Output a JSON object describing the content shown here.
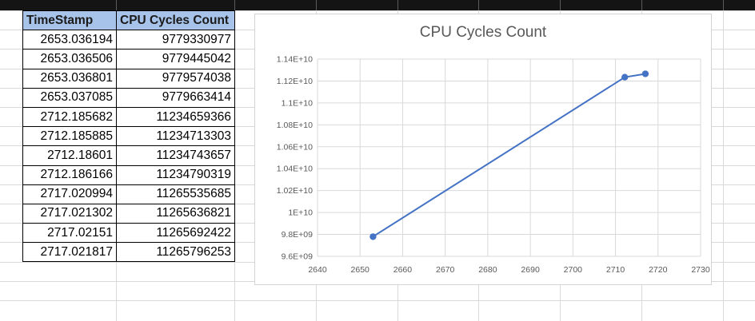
{
  "sheet": {
    "headers": [
      "TimeStamp",
      "CPU Cycles Count"
    ],
    "rows": [
      [
        "2653.036194",
        "9779330977"
      ],
      [
        "2653.036506",
        "9779445042"
      ],
      [
        "2653.036801",
        "9779574038"
      ],
      [
        "2653.037085",
        "9779663414"
      ],
      [
        "2712.185682",
        "11234659366"
      ],
      [
        "2712.185885",
        "11234713303"
      ],
      [
        "2712.18601",
        "11234743657"
      ],
      [
        "2712.186166",
        "11234790319"
      ],
      [
        "2717.020994",
        "11265535685"
      ],
      [
        "2717.021302",
        "11265636821"
      ],
      [
        "2717.02151",
        "11265692422"
      ],
      [
        "2717.021817",
        "11265796253"
      ]
    ]
  },
  "chart_data": {
    "type": "scatter",
    "title": "CPU Cycles Count",
    "xlabel": "",
    "ylabel": "",
    "xlim": [
      2640,
      2730
    ],
    "ylim": [
      9600000000,
      11400000000
    ],
    "x_ticks": [
      "2640",
      "2650",
      "2660",
      "2670",
      "2680",
      "2690",
      "2700",
      "2710",
      "2720",
      "2730"
    ],
    "y_ticks": [
      "9.6E+09",
      "9.8E+09",
      "1E+10",
      "1.02E+10",
      "1.04E+10",
      "1.06E+10",
      "1.08E+10",
      "1.1E+10",
      "1.12E+10",
      "1.14E+10"
    ],
    "grid": true,
    "series_color": "#4472c4",
    "x": [
      2653.036194,
      2653.036506,
      2653.036801,
      2653.037085,
      2712.185682,
      2712.185885,
      2712.18601,
      2712.186166,
      2717.020994,
      2717.021302,
      2717.02151,
      2717.021817
    ],
    "y": [
      9779330977,
      9779445042,
      9779574038,
      9779663414,
      11234659366,
      11234713303,
      11234743657,
      11234790319,
      11265535685,
      11265636821,
      11265692422,
      11265796253
    ]
  }
}
